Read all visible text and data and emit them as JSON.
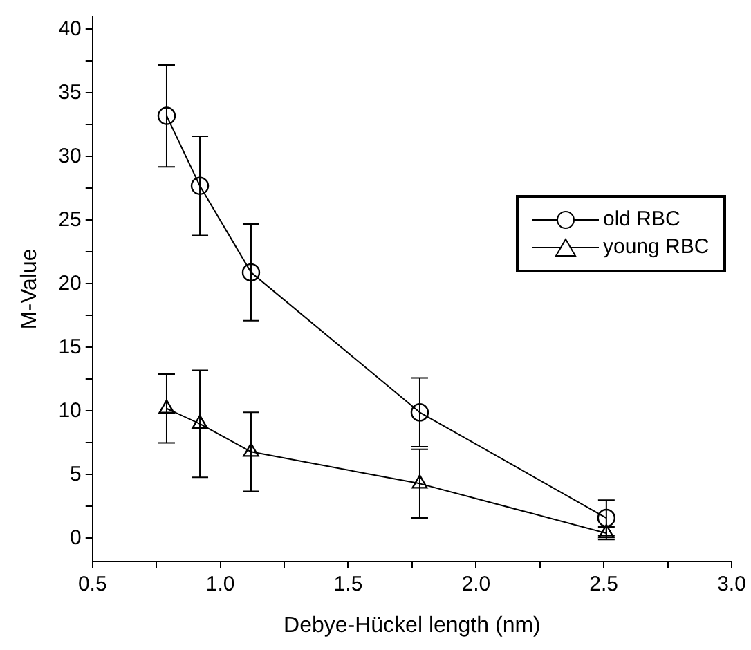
{
  "chart_data": {
    "type": "line",
    "xlabel": "Debye-Hückel length (nm)",
    "ylabel": "M-Value",
    "xlim": [
      0.5,
      3.0
    ],
    "xticks": [
      0.5,
      {
        "value": 0.75,
        "label": null
      },
      "1.0",
      {
        "value": 1.25,
        "label": null
      },
      1.5,
      {
        "value": 1.75,
        "label": null
      },
      "2.0",
      {
        "value": 2.25,
        "label": null
      },
      2.5,
      {
        "value": 2.75,
        "label": null
      },
      "3.0"
    ],
    "ylim": [
      -1.8,
      41
    ],
    "yticks": [
      0,
      {
        "value": 2.5,
        "label": null
      },
      5,
      {
        "value": 7.5,
        "label": null
      },
      10,
      {
        "value": 12.5,
        "label": null
      },
      15,
      {
        "value": 17.5,
        "label": null
      },
      20,
      {
        "value": 22.5,
        "label": null
      },
      25,
      {
        "value": 27.5,
        "label": null
      },
      30,
      {
        "value": 32.5,
        "label": null
      },
      35,
      {
        "value": 37.5,
        "label": null
      },
      40
    ],
    "grid": false,
    "legend": "right",
    "line_style": "solid",
    "series": [
      {
        "name": "old RBC",
        "color": "#000000",
        "marker": "circle",
        "x": [
          0.79,
          0.92,
          1.12,
          1.78,
          2.51
        ],
        "values": [
          33.2,
          27.7,
          20.9,
          9.9,
          1.6
        ],
        "errors": [
          4.0,
          3.9,
          3.8,
          2.7,
          1.4
        ]
      },
      {
        "name": "young RBC",
        "color": "#000000",
        "marker": "triangle",
        "x": [
          0.79,
          0.92,
          1.12,
          1.78,
          2.51
        ],
        "values": [
          10.2,
          9.0,
          6.8,
          4.3,
          0.4
        ],
        "errors": [
          2.7,
          4.2,
          3.1,
          2.7,
          0.5
        ]
      }
    ]
  }
}
